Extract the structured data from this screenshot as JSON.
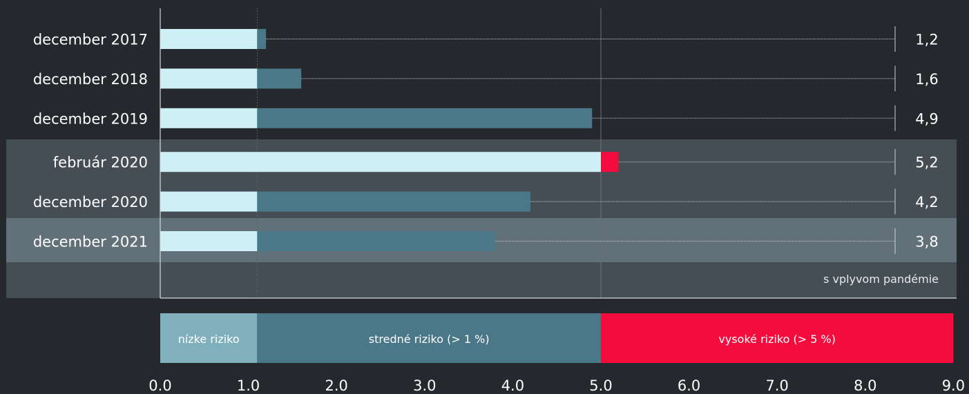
{
  "chart_data": {
    "type": "bar",
    "orientation": "horizontal",
    "stacked": true,
    "categories": [
      "december 2017",
      "december 2018",
      "december 2019",
      "február 2020",
      "december 2020",
      "december 2021"
    ],
    "values": [
      1.2,
      1.6,
      4.9,
      5.2,
      4.2,
      3.8
    ],
    "value_labels": [
      "1,2",
      "1,6",
      "4,9",
      "5,2",
      "4,2",
      "3,8"
    ],
    "series": [
      {
        "values": [
          1.1,
          1.1,
          1.1,
          5.0,
          1.1,
          1.1
        ],
        "color": "#cdf0f6"
      },
      {
        "values": [
          0.1,
          0.5,
          3.8,
          0.0,
          3.1,
          2.7
        ],
        "color": "#4a7889"
      },
      {
        "values": [
          0.0,
          0.0,
          0.0,
          0.2,
          0.0,
          0.0
        ],
        "color": "#f50c3f"
      }
    ],
    "xlim": [
      0,
      9
    ],
    "x_ticks": [
      "0.0",
      "1.0",
      "2.0",
      "3.0",
      "4.0",
      "5.0",
      "6.0",
      "7.0",
      "8.0",
      "9.0"
    ],
    "risk_scale": [
      {
        "label": "nízke riziko",
        "from": 0,
        "to": 1.1,
        "color": "#7fb0bc",
        "text_color": "#ffffff"
      },
      {
        "label": "stredné riziko (> 1 %)",
        "from": 1.1,
        "to": 5.0,
        "color": "#4a7889",
        "text_color": "#ffffff"
      },
      {
        "label": "vysoké riziko (> 5 %)",
        "from": 5.0,
        "to": 9.0,
        "color": "#f50c3f",
        "text_color": "#ffffff"
      }
    ],
    "pandemic_note": "s vplyvom pandémie",
    "grid": false
  }
}
